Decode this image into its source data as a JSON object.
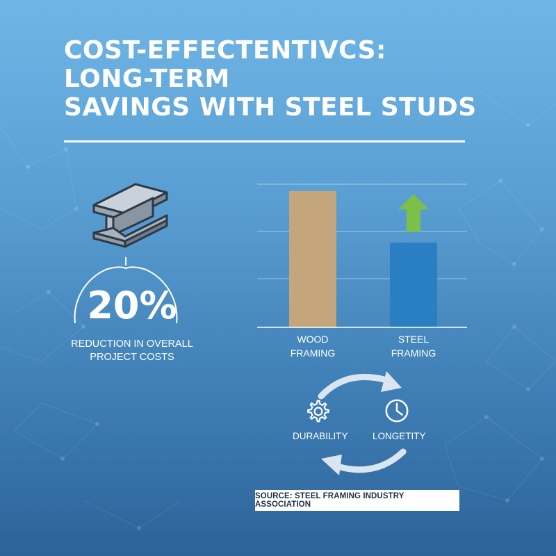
{
  "title": {
    "line1": "COST-EFFECTENTIVCS:",
    "line2": "LONG-TERM",
    "line3": "SAVINGS WITH STEEL STUDS"
  },
  "stat": {
    "value": "20%",
    "caption_line1": "REDUCTION IN OVERALL",
    "caption_line2": "PROJECT COSTS",
    "icon": "steel-beam-icon"
  },
  "chart_data": {
    "type": "bar",
    "categories": [
      {
        "line1": "WOOD",
        "line2": "FRAMING"
      },
      {
        "line1": "STEEL",
        "line2": "FRAMING"
      }
    ],
    "values": [
      100,
      62
    ],
    "ylim": [
      0,
      105
    ],
    "grid": true,
    "colors": [
      "#c4a57c",
      "#2a7ec2"
    ],
    "up_arrow_on": "STEEL FRAMING",
    "arrow_color": "#7cc04a"
  },
  "cycle": {
    "left_label": "DURABILITY",
    "right_label": "LONGETITY",
    "left_icon": "gear-icon",
    "right_icon": "clock-icon"
  },
  "source": {
    "text": "SOURCE: STEEL FRAMING INDUSTRY ASSOCIATION"
  }
}
